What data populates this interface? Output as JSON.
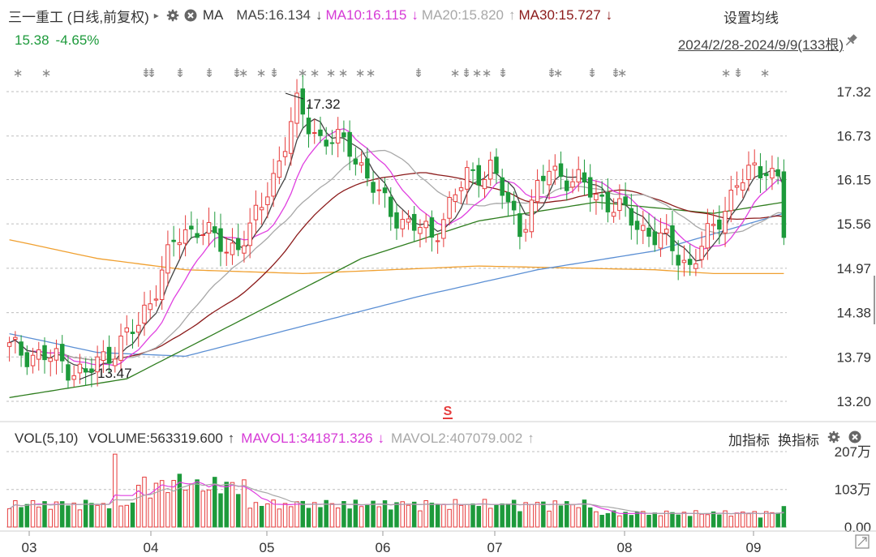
{
  "header": {
    "stock_name": "三一重工 (日线,前复权)",
    "arrow": "▸",
    "ma_label": "MA",
    "ma5": "MA5:16.134",
    "ma5_arrow": "↓",
    "ma10": "MA10:16.115",
    "ma10_arrow": "↓",
    "ma20": "MA20:15.820",
    "ma20_arrow": "↑",
    "ma30": "MA30:15.727",
    "ma30_arrow": "↓",
    "settings": "设置均线",
    "settings_chevron": "⌄",
    "price": "15.38",
    "change": "-4.65%",
    "date_range": "2024/2/28-2024/9/9(133根)"
  },
  "volume_header": {
    "vol_label": "VOL(5,10)",
    "volume": "VOLUME:563319.600",
    "volume_arrow": "↑",
    "mavol1": "MAVOL1:341871.326",
    "mavol1_arrow": "↓",
    "mavol2": "MAVOL2:407079.002",
    "mavol2_arrow": "↑",
    "add_indicator": "加指标",
    "switch_indicator": "换指标"
  },
  "icons": [
    "gear-icon",
    "close-icon",
    "pin-icon",
    "signal-s-icon"
  ],
  "colors": {
    "up": "#e63c3c",
    "down": "#1d9a3b",
    "ma5": "#444444",
    "ma10": "#e040e0",
    "ma20": "#a8a8a8",
    "ma30": "#8b1a1a",
    "ma60": "#2e7d1e",
    "ma120": "#5b8fd4",
    "ma250": "#f0a030",
    "price_change": "#1d9a3b",
    "signal_s": "#e63c3c"
  },
  "chart_data": [
    {
      "type": "candlestick",
      "title": "三一重工 (日线,前复权)",
      "date_range": "2024/2/28-2024/9/9",
      "bar_count": 133,
      "y_ticks": [
        "17.32",
        "16.73",
        "16.15",
        "15.56",
        "14.97",
        "14.38",
        "13.79",
        "13.20"
      ],
      "x_ticks": [
        "03",
        "04",
        "05",
        "06",
        "07",
        "08",
        "09"
      ],
      "ylim": [
        13.2,
        17.32
      ],
      "annotations": [
        {
          "text": "17.32",
          "kind": "high"
        },
        {
          "text": "13.47",
          "kind": "low"
        }
      ],
      "marker_row": [
        "∗",
        "∗",
        "⇟",
        "⇟",
        "⇟",
        "⇟",
        "⇟",
        "∗",
        "∗",
        "⇟",
        "∗",
        "∗",
        "∗",
        "∗",
        "∗",
        "∗",
        "⇟",
        "∗",
        "⇟",
        "∗",
        "∗",
        "⇟",
        "⇟",
        "∗",
        "⇟",
        "⇟",
        "∗",
        "∗",
        "⇟",
        "∗"
      ],
      "signal": "S",
      "ohlc_approx": {
        "anchors": [
          {
            "bar": 0,
            "close": 13.9
          },
          {
            "bar": 8,
            "close": 13.75
          },
          {
            "bar": 13,
            "close": 13.55
          },
          {
            "bar": 17,
            "close": 13.85
          },
          {
            "bar": 22,
            "close": 14.2
          },
          {
            "bar": 28,
            "close": 15.3
          },
          {
            "bar": 32,
            "close": 15.55
          },
          {
            "bar": 37,
            "close": 15.2
          },
          {
            "bar": 41,
            "close": 15.45
          },
          {
            "bar": 45,
            "close": 16.2
          },
          {
            "bar": 49,
            "close": 17.1
          },
          {
            "bar": 53,
            "close": 16.7
          },
          {
            "bar": 58,
            "close": 16.6
          },
          {
            "bar": 63,
            "close": 15.9
          },
          {
            "bar": 67,
            "close": 15.6
          },
          {
            "bar": 72,
            "close": 15.4
          },
          {
            "bar": 78,
            "close": 16.2
          },
          {
            "bar": 82,
            "close": 16.3
          },
          {
            "bar": 87,
            "close": 15.5
          },
          {
            "bar": 92,
            "close": 16.3
          },
          {
            "bar": 97,
            "close": 16.1
          },
          {
            "bar": 103,
            "close": 15.8
          },
          {
            "bar": 108,
            "close": 15.5
          },
          {
            "bar": 112,
            "close": 15.3
          },
          {
            "bar": 116,
            "close": 15.0
          },
          {
            "bar": 120,
            "close": 15.5
          },
          {
            "bar": 124,
            "close": 16.1
          },
          {
            "bar": 129,
            "close": 16.35
          },
          {
            "bar": 131,
            "close": 16.15
          },
          {
            "bar": 132,
            "close": 15.38
          }
        ]
      },
      "moving_averages": [
        {
          "name": "MA5",
          "last": 16.134
        },
        {
          "name": "MA10",
          "last": 16.115
        },
        {
          "name": "MA20",
          "last": 15.82
        },
        {
          "name": "MA30",
          "last": 15.727
        },
        {
          "anchors": [
            [
              0,
              13.25
            ],
            [
              20,
              13.5
            ],
            [
              40,
              14.3
            ],
            [
              60,
              15.1
            ],
            [
              80,
              15.6
            ],
            [
              100,
              15.85
            ],
            [
              120,
              15.7
            ],
            [
              132,
              15.85
            ]
          ]
        },
        {
          "anchors": [
            [
              0,
              14.1
            ],
            [
              15,
              13.85
            ],
            [
              30,
              13.8
            ],
            [
              50,
              14.2
            ],
            [
              70,
              14.6
            ],
            [
              90,
              14.95
            ],
            [
              110,
              15.2
            ],
            [
              132,
              15.7
            ]
          ]
        },
        {
          "anchors": [
            [
              0,
              15.35
            ],
            [
              15,
              15.1
            ],
            [
              30,
              14.95
            ],
            [
              50,
              14.9
            ],
            [
              80,
              15.0
            ],
            [
              110,
              14.95
            ],
            [
              120,
              14.9
            ],
            [
              132,
              14.9
            ]
          ]
        }
      ]
    },
    {
      "type": "bar",
      "title": "VOL(5,10)",
      "y_ticks": [
        "207万",
        "103万",
        "0.00"
      ],
      "ylim": [
        0,
        2070000
      ],
      "last_volume": 563319.6,
      "mavol1": 341871.326,
      "mavol2": 407079.002
    }
  ]
}
